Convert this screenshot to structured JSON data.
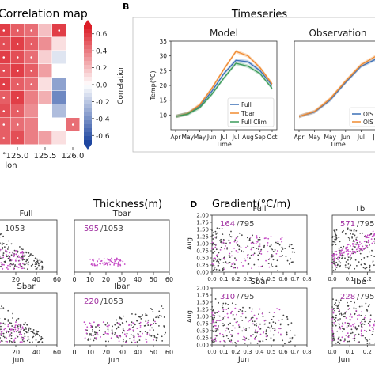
{
  "figure": {
    "panel_b_label": "B",
    "panel_d_label": "D",
    "corr_title": "Correlation map",
    "corr_colorbar_label": "Correlation",
    "corr_colorbar_ticks": [
      "0.6",
      "0.4",
      "0.2",
      "0.0",
      "-0.2",
      "-0.4",
      "-0.6"
    ],
    "corr_xlabel": "lon",
    "corr_xticks": [
      "125.0",
      "125.5",
      "126.0"
    ],
    "timeseries_title": "Timeseries",
    "thickness_title": "Thickness(m)",
    "gradient_title": "Gradient(°C/m)"
  },
  "chart_data": [
    {
      "type": "heatmap",
      "title": "Correlation map",
      "xlabel": "lon",
      "colorbar_label": "Correlation",
      "colorbar_range": [
        -0.7,
        0.7
      ],
      "columns": 6,
      "rows": 9,
      "values": [
        [
          0.6,
          0.5,
          0.45,
          0.2,
          0.6,
          null
        ],
        [
          0.55,
          0.6,
          0.5,
          0.35,
          0.1,
          null
        ],
        [
          0.6,
          0.55,
          0.45,
          0.15,
          -0.1,
          null
        ],
        [
          0.55,
          0.6,
          0.5,
          0.3,
          null,
          null
        ],
        [
          0.6,
          0.5,
          0.45,
          0.1,
          -0.35,
          null
        ],
        [
          0.5,
          0.6,
          0.4,
          0.25,
          -0.45,
          null
        ],
        [
          0.55,
          0.5,
          0.35,
          null,
          -0.25,
          null
        ],
        [
          0.5,
          0.45,
          0.4,
          null,
          null,
          0.45
        ],
        [
          0.5,
          0.55,
          0.4,
          0.3,
          0.1,
          null
        ]
      ]
    },
    {
      "type": "line",
      "title": "Model",
      "ylabel": "Temp(°C)",
      "xlabel": "Time",
      "x": [
        "Apr",
        "May",
        "May",
        "Jun",
        "Jul",
        "Jul",
        "Aug",
        "Sep",
        "Oct"
      ],
      "ylim": [
        5,
        35
      ],
      "yticks": [
        10,
        15,
        20,
        25,
        30,
        35
      ],
      "series": [
        {
          "name": "Full",
          "color": "#3b6fb6",
          "values": [
            9.5,
            10.5,
            13,
            18,
            24,
            28.5,
            28,
            25,
            20
          ]
        },
        {
          "name": "Tbar",
          "color": "#f08a30",
          "values": [
            9.5,
            10.5,
            13.5,
            19,
            25.5,
            31.5,
            30,
            26,
            20.5
          ]
        },
        {
          "name": "Full Clim",
          "color": "#3a9a5a",
          "values": [
            9.5,
            10.3,
            12.5,
            17,
            22.5,
            27.5,
            26.5,
            24,
            19
          ]
        }
      ],
      "legend_position": "lower-right"
    },
    {
      "type": "line",
      "title": "Observation",
      "xlabel": "Time",
      "x": [
        "Apr",
        "May",
        "May",
        "Jun",
        "Jul",
        "Jul"
      ],
      "series": [
        {
          "name": "OIS",
          "color": "#3b6fb6",
          "values": [
            9.5,
            11,
            15,
            21,
            26.5,
            29
          ]
        },
        {
          "name": "OIS",
          "color": "#f08a30",
          "values": [
            9.5,
            11.2,
            15.5,
            21.5,
            27,
            30
          ]
        }
      ]
    },
    {
      "type": "scatter",
      "title": "Thickness(m)",
      "panels": [
        {
          "name": "Full",
          "count": "1053",
          "xlim": [
            0,
            60
          ],
          "xticks": [
            20,
            40,
            60
          ]
        },
        {
          "name": "Tbar",
          "count": "/1053",
          "highlight": "595",
          "xlim": [
            0,
            60
          ],
          "xticks": [
            0,
            10,
            20,
            30,
            40,
            50,
            60
          ]
        },
        {
          "name": "Sbar",
          "xlim": [
            0,
            60
          ],
          "xticks": [
            20,
            40,
            60
          ],
          "xlabel": "Jun"
        },
        {
          "name": "Ibar",
          "count": "/1053",
          "highlight": "220",
          "xlim": [
            0,
            60
          ],
          "xticks": [
            0,
            10,
            20,
            30,
            40,
            50,
            60
          ],
          "xlabel": "Jun"
        }
      ]
    },
    {
      "type": "scatter",
      "title": "Gradient(°C/m)",
      "ylabel": "Aug",
      "panels": [
        {
          "name": "Full",
          "count": "/795",
          "highlight": "164",
          "xlim": [
            0,
            0.8
          ],
          "ylim": [
            0,
            2.0
          ]
        },
        {
          "name": "Tb",
          "count": "/795",
          "highlight": "571",
          "xlim": [
            0,
            0.8
          ],
          "ylim": [
            0,
            2.0
          ]
        },
        {
          "name": "Sbar",
          "count": "/795",
          "highlight": "310",
          "xlim": [
            0,
            0.8
          ],
          "ylim": [
            0,
            2.0
          ],
          "xlabel": "Jun"
        },
        {
          "name": "Ibe",
          "count": "/795",
          "highlight": "228",
          "xlim": [
            0,
            0.8
          ],
          "ylim": [
            0,
            2.0
          ],
          "xlabel": "Jun"
        }
      ],
      "yticks": [
        "0.00",
        "0.25",
        "0.50",
        "0.75",
        "1.00",
        "1.25",
        "1.50",
        "1.75",
        "2.00"
      ],
      "xticks": [
        "0.0",
        "0.1",
        "0.2",
        "0.3",
        "0.4",
        "0.5",
        "0.6",
        "0.7",
        "0.8"
      ]
    }
  ]
}
